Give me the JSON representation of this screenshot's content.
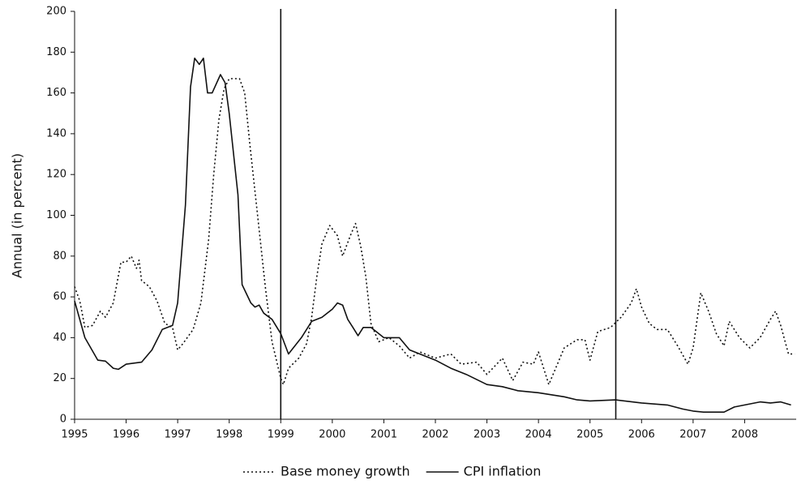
{
  "chart_data": {
    "type": "line",
    "y_label": "Annual (in percent)",
    "xlim": [
      1995,
      2009
    ],
    "xticks": [
      1995,
      1996,
      1997,
      1998,
      1999,
      2000,
      2001,
      2002,
      2003,
      2004,
      2005,
      2006,
      2007,
      2008
    ],
    "ylim": [
      0,
      200
    ],
    "yticks": [
      0,
      20,
      40,
      60,
      80,
      100,
      120,
      140,
      160,
      180,
      200
    ],
    "grid": false,
    "legend": "bottom",
    "vlines": [
      1999,
      2005.5
    ],
    "series": [
      {
        "name": "Base money growth",
        "color": "#111111",
        "dash": "2,3",
        "x": [
          1995.0,
          1995.1,
          1995.2,
          1995.35,
          1995.5,
          1995.6,
          1995.75,
          1995.9,
          1996.0,
          1996.1,
          1996.2,
          1996.25,
          1996.3,
          1996.45,
          1996.6,
          1996.75,
          1996.9,
          1997.0,
          1997.1,
          1997.3,
          1997.45,
          1997.6,
          1997.7,
          1997.8,
          1997.9,
          1998.0,
          1998.2,
          1998.3,
          1998.4,
          1998.55,
          1998.7,
          1998.83,
          1999.0,
          1999.05,
          1999.15,
          1999.35,
          1999.5,
          1999.6,
          1999.7,
          1999.8,
          1999.95,
          2000.1,
          2000.2,
          2000.35,
          2000.45,
          2000.55,
          2000.65,
          2000.75,
          2000.9,
          2001.1,
          2001.3,
          2001.5,
          2001.7,
          2002.0,
          2002.3,
          2002.5,
          2002.8,
          2003.0,
          2003.3,
          2003.5,
          2003.7,
          2003.9,
          2004.0,
          2004.2,
          2004.35,
          2004.5,
          2004.75,
          2004.9,
          2005.0,
          2005.15,
          2005.4,
          2005.6,
          2005.8,
          2005.9,
          2006.0,
          2006.15,
          2006.3,
          2006.5,
          2006.7,
          2006.9,
          2007.0,
          2007.15,
          2007.3,
          2007.45,
          2007.6,
          2007.7,
          2007.9,
          2008.1,
          2008.3,
          2008.5,
          2008.6,
          2008.7,
          2008.85,
          2008.97
        ],
        "values": [
          65,
          58,
          45,
          46,
          53,
          50,
          57,
          77,
          77,
          80,
          74,
          78,
          68,
          65,
          58,
          47,
          45,
          34,
          37,
          44,
          57,
          88,
          120,
          147,
          162,
          167,
          167,
          160,
          135,
          100,
          65,
          38,
          20,
          17,
          25,
          30,
          37,
          50,
          70,
          86,
          95,
          90,
          80,
          90,
          96,
          85,
          70,
          47,
          38,
          40,
          36,
          30,
          33,
          30,
          32,
          27,
          28,
          22,
          30,
          19,
          28,
          27,
          33,
          17,
          26,
          35,
          39,
          39,
          29,
          43,
          45,
          50,
          57,
          64,
          55,
          47,
          44,
          44,
          36,
          27,
          35,
          62,
          53,
          42,
          36,
          48,
          40,
          35,
          40,
          49,
          53,
          46,
          32,
          32
        ]
      },
      {
        "name": "CPI inflation",
        "color": "#111111",
        "dash": "none",
        "x": [
          1995.0,
          1995.2,
          1995.45,
          1995.6,
          1995.75,
          1995.85,
          1996.0,
          1996.3,
          1996.5,
          1996.7,
          1996.9,
          1997.0,
          1997.15,
          1997.25,
          1997.33,
          1997.42,
          1997.5,
          1997.58,
          1997.67,
          1997.83,
          1997.92,
          1998.0,
          1998.17,
          1998.25,
          1998.42,
          1998.5,
          1998.58,
          1998.67,
          1998.83,
          1999.0,
          1999.15,
          1999.4,
          1999.6,
          1999.8,
          2000.0,
          2000.1,
          2000.2,
          2000.3,
          2000.4,
          2000.5,
          2000.6,
          2000.75,
          2001.0,
          2001.3,
          2001.5,
          2002.0,
          2002.3,
          2002.6,
          2003.0,
          2003.3,
          2003.6,
          2004.0,
          2004.5,
          2004.75,
          2005.0,
          2005.5,
          2006.0,
          2006.5,
          2006.8,
          2007.0,
          2007.2,
          2007.6,
          2007.8,
          2008.0,
          2008.3,
          2008.5,
          2008.7,
          2008.9
        ],
        "values": [
          58,
          40,
          29,
          28.5,
          25,
          24.5,
          27,
          28,
          34,
          44,
          46,
          57,
          105,
          163,
          177,
          174,
          177,
          160,
          160,
          169,
          165,
          150,
          110,
          66,
          57,
          55,
          56,
          52,
          49,
          42,
          32,
          40,
          48,
          50,
          54,
          57,
          56,
          49,
          45,
          41,
          45,
          45,
          40,
          40,
          34,
          29,
          25,
          22,
          17,
          16,
          14,
          13,
          11,
          9.5,
          9,
          9.5,
          8,
          7,
          5,
          4,
          3.5,
          3.5,
          6,
          7,
          8.5,
          8,
          8.5,
          7
        ]
      }
    ]
  }
}
